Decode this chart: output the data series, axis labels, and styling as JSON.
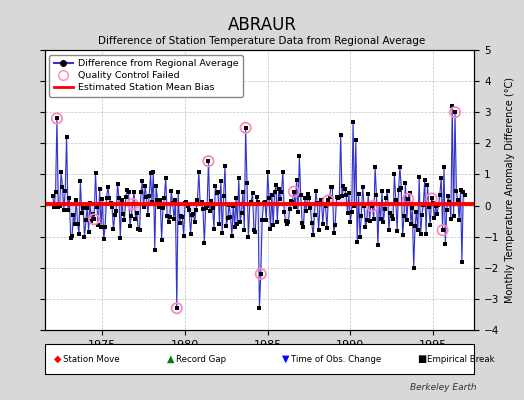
{
  "title": "ABRAUR",
  "subtitle": "Difference of Station Temperature Data from Regional Average",
  "ylabel": "Monthly Temperature Anomaly Difference (°C)",
  "xlim": [
    1971.5,
    1997.5
  ],
  "ylim": [
    -4,
    5
  ],
  "yticks": [
    -4,
    -3,
    -2,
    -1,
    0,
    1,
    2,
    3,
    4,
    5
  ],
  "xticks": [
    1975,
    1980,
    1985,
    1990,
    1995
  ],
  "mean_bias": 0.05,
  "line_color": "#3333CC",
  "fill_color": "#9999DD",
  "dot_color": "#000000",
  "qc_color": "#FF88BB",
  "bias_color": "#FF0000",
  "bg_color": "#D8D8D8",
  "plot_bg": "#FFFFFF",
  "grid_color": "#BBBBBB",
  "watermark": "Berkeley Earth",
  "seed": 42,
  "n_months": 300,
  "start_year": 1972.0,
  "end_year": 1996.92
}
